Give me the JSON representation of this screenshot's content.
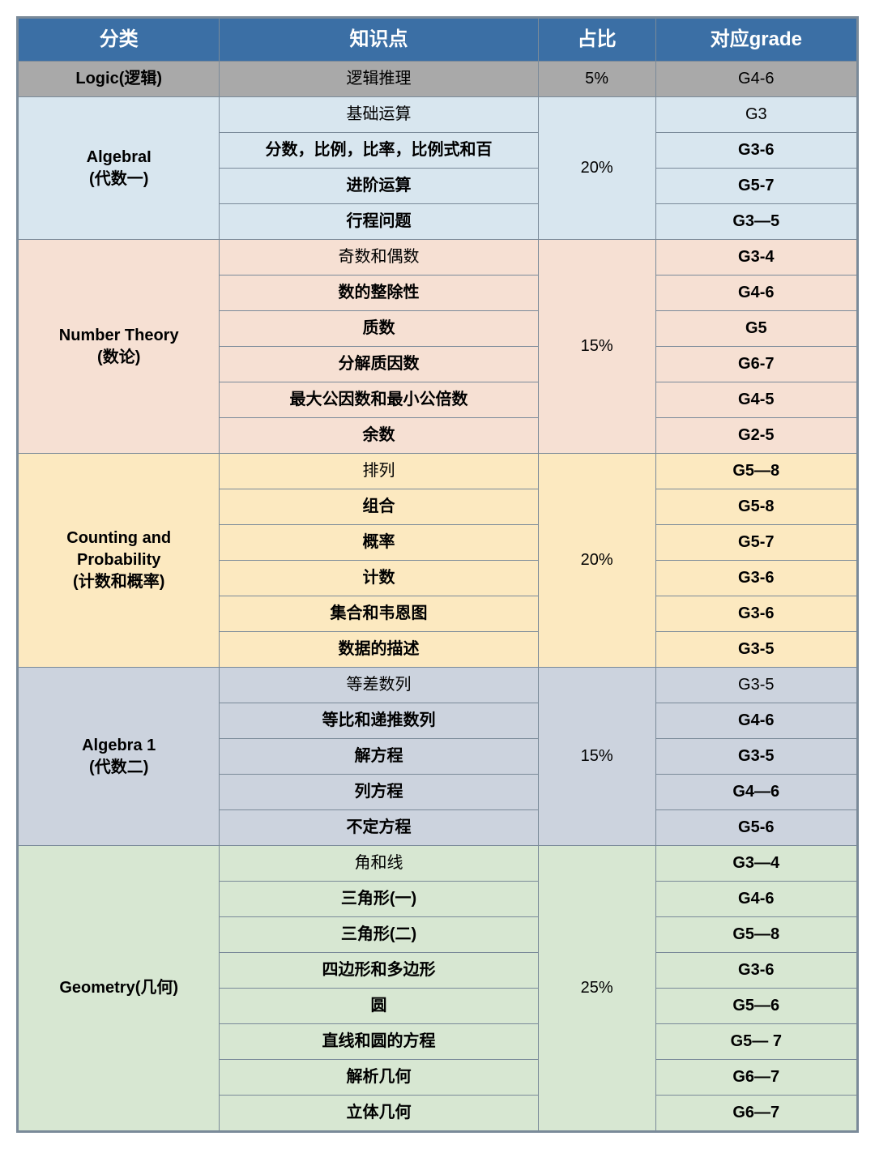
{
  "colors": {
    "header_bg": "#3b6fa5",
    "border": "#7a8a99",
    "section_bg": {
      "logic": "#a9a9a9",
      "algebraI": "#d8e6ef",
      "number": "#f6e0d3",
      "counting": "#fce9c0",
      "algebra1": "#ccd3de",
      "geometry": "#d7e7d2"
    }
  },
  "columns": {
    "category": "分类",
    "topic": "知识点",
    "percent": "占比",
    "grade": "对应grade"
  },
  "sections": [
    {
      "key": "logic",
      "category": "Logic(逻辑)",
      "percent": "5%",
      "rows": [
        {
          "topic": "逻辑推理",
          "grade": "G4-6",
          "bold": false
        }
      ]
    },
    {
      "key": "algebraI",
      "category": "AlgebraI\n(代数一)",
      "percent": "20%",
      "rows": [
        {
          "topic": "基础运算",
          "grade": "G3",
          "bold": false
        },
        {
          "topic": "分数，比例，比率，比例式和百",
          "grade": "G3-6",
          "bold": true
        },
        {
          "topic": "进阶运算",
          "grade": "G5-7",
          "bold": true
        },
        {
          "topic": "行程问题",
          "grade": "G3—5",
          "bold": true
        }
      ]
    },
    {
      "key": "number",
      "category": "Number Theory\n(数论)",
      "percent": "15%",
      "rows": [
        {
          "topic": "奇数和偶数",
          "grade": "G3-4",
          "bold": false,
          "grade_bold": true
        },
        {
          "topic": "数的整除性",
          "grade": "G4-6",
          "bold": true
        },
        {
          "topic": "质数",
          "grade": "G5",
          "bold": true
        },
        {
          "topic": "分解质因数",
          "grade": "G6-7",
          "bold": true
        },
        {
          "topic": "最大公因数和最小公倍数",
          "grade": "G4-5",
          "bold": true
        },
        {
          "topic": "余数",
          "grade": "G2-5",
          "bold": true
        }
      ]
    },
    {
      "key": "counting",
      "category": "Counting and\nProbability\n(计数和概率)",
      "percent": "20%",
      "rows": [
        {
          "topic": "排列",
          "grade": "G5—8",
          "bold": false,
          "grade_bold": true
        },
        {
          "topic": "组合",
          "grade": "G5-8",
          "bold": true
        },
        {
          "topic": "概率",
          "grade": "G5-7",
          "bold": true
        },
        {
          "topic": "计数",
          "grade": "G3-6",
          "bold": true
        },
        {
          "topic": "集合和韦恩图",
          "grade": "G3-6",
          "bold": true
        },
        {
          "topic": "数据的描述",
          "grade": "G3-5",
          "bold": true
        }
      ]
    },
    {
      "key": "algebra1",
      "category": "Algebra 1\n(代数二)",
      "percent": "15%",
      "rows": [
        {
          "topic": "等差数列",
          "grade": "G3-5",
          "bold": false
        },
        {
          "topic": "等比和递推数列",
          "grade": "G4-6",
          "bold": true
        },
        {
          "topic": "解方程",
          "grade": "G3-5",
          "bold": true
        },
        {
          "topic": "列方程",
          "grade": "G4—6",
          "bold": true
        },
        {
          "topic": "不定方程",
          "grade": "G5-6",
          "bold": true
        }
      ]
    },
    {
      "key": "geometry",
      "category": "Geometry(几何)",
      "percent": "25%",
      "rows": [
        {
          "topic": "角和线",
          "grade": "G3—4",
          "bold": false,
          "grade_bold": true
        },
        {
          "topic": "三角形(一)",
          "grade": "G4-6",
          "bold": true
        },
        {
          "topic": "三角形(二)",
          "grade": "G5—8",
          "bold": true
        },
        {
          "topic": "四边形和多边形",
          "grade": "G3-6",
          "bold": true
        },
        {
          "topic": "圆",
          "grade": "G5—6",
          "bold": true
        },
        {
          "topic": "直线和圆的方程",
          "grade": "G5— 7",
          "bold": true
        },
        {
          "topic": "解析几何",
          "grade": "G6—7",
          "bold": true
        },
        {
          "topic": "立体几何",
          "grade": "G6—7",
          "bold": true
        }
      ]
    }
  ]
}
